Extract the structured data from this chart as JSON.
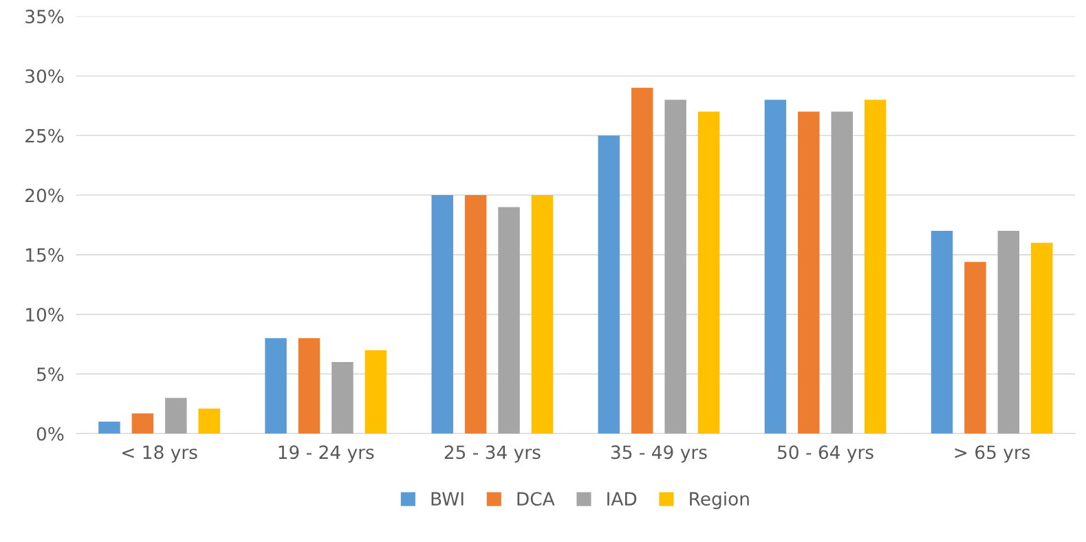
{
  "chart_data": {
    "type": "bar",
    "categories": [
      "< 18 yrs",
      "19 - 24 yrs",
      "25 - 34 yrs",
      "35 - 49 yrs",
      "50 - 64 yrs",
      "> 65 yrs"
    ],
    "series": [
      {
        "name": "BWI",
        "color": "#5b9bd5",
        "values": [
          1,
          8,
          20,
          25,
          28,
          17
        ]
      },
      {
        "name": "DCA",
        "color": "#ed7d31",
        "values": [
          1.7,
          8,
          20,
          29,
          27,
          14.4
        ]
      },
      {
        "name": "IAD",
        "color": "#a5a5a5",
        "values": [
          3,
          6,
          19,
          28,
          27,
          17
        ]
      },
      {
        "name": "Region",
        "color": "#ffc000",
        "values": [
          2.1,
          7,
          20,
          27,
          28,
          16
        ]
      }
    ],
    "ylim": [
      0,
      35
    ],
    "yticks": [
      {
        "value": 0,
        "label": "0%"
      },
      {
        "value": 5,
        "label": "5%"
      },
      {
        "value": 10,
        "label": "10%"
      },
      {
        "value": 15,
        "label": "15%"
      },
      {
        "value": 20,
        "label": "20%"
      },
      {
        "value": 25,
        "label": "25%"
      },
      {
        "value": 30,
        "label": "30%"
      },
      {
        "value": 35,
        "label": "35%"
      }
    ],
    "grid": "y",
    "legend": "bottom"
  }
}
